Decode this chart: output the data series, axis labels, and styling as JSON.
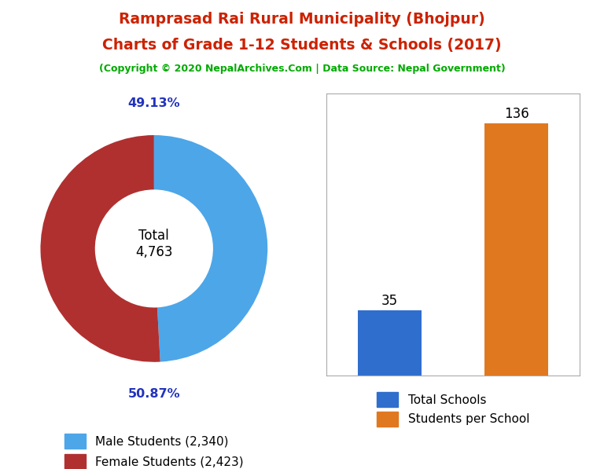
{
  "title_line1": "Ramprasad Rai Rural Municipality (Bhojpur)",
  "title_line2": "Charts of Grade 1-12 Students & Schools (2017)",
  "subtitle": "(Copyright © 2020 NepalArchives.Com | Data Source: Nepal Government)",
  "title_color": "#cc2200",
  "subtitle_color": "#00aa00",
  "donut_values": [
    2340,
    2423
  ],
  "donut_colors": [
    "#4da6e8",
    "#b03030"
  ],
  "donut_labels": [
    "49.13%",
    "50.87%"
  ],
  "donut_total_label": "Total\n4,763",
  "legend_donut": [
    "Male Students (2,340)",
    "Female Students (2,423)"
  ],
  "bar_values": [
    35,
    136
  ],
  "bar_colors": [
    "#2f6ecc",
    "#e07820"
  ],
  "bar_labels": [
    "35",
    "136"
  ],
  "legend_bar": [
    "Total Schools",
    "Students per School"
  ],
  "background_color": "#ffffff",
  "pct_label_color": "#2233bb"
}
